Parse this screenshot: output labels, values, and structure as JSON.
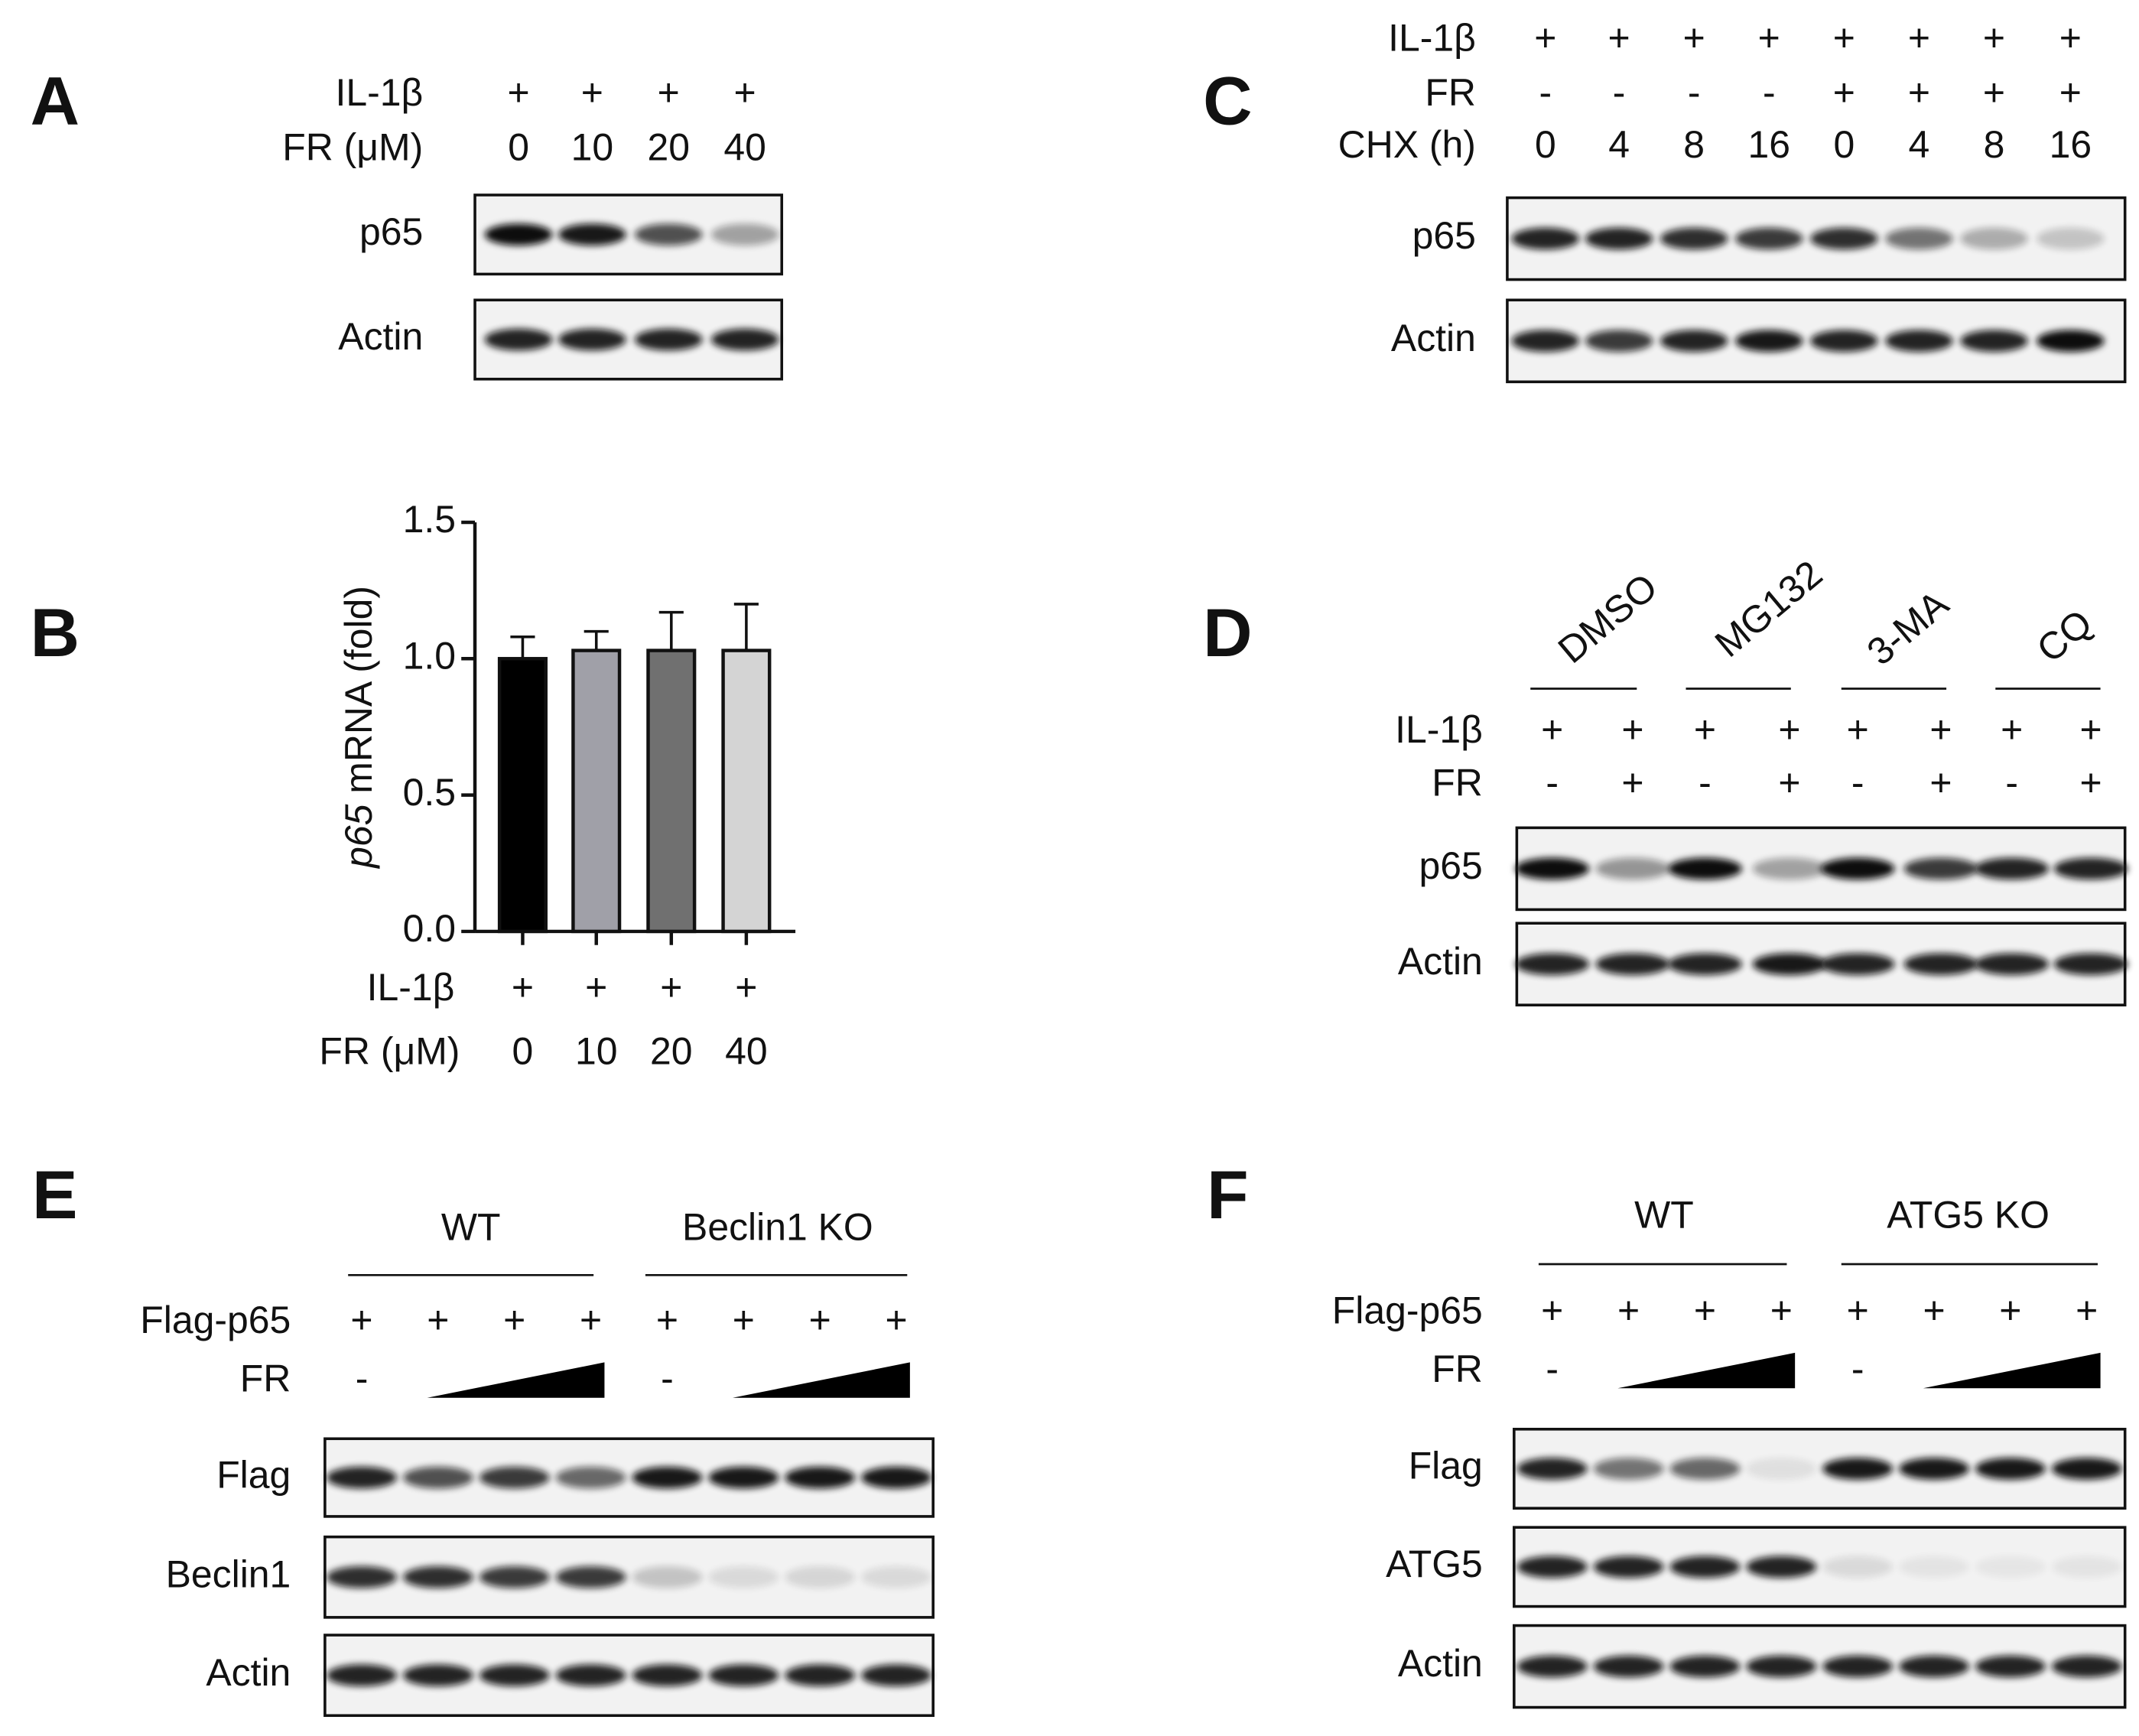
{
  "panels": {
    "A": {
      "label": "A",
      "conditions": [
        {
          "name": "IL-1β",
          "values": [
            "+",
            "+",
            "+",
            "+"
          ]
        },
        {
          "name": "FR (μM)",
          "values": [
            "0",
            "10",
            "20",
            "40"
          ]
        }
      ],
      "blots": [
        "p65",
        "Actin"
      ]
    },
    "C": {
      "label": "C",
      "conditions": [
        {
          "name": "IL-1β",
          "values": [
            "+",
            "+",
            "+",
            "+",
            "+",
            "+",
            "+",
            "+"
          ]
        },
        {
          "name": "FR",
          "values": [
            "-",
            "-",
            "-",
            "-",
            "+",
            "+",
            "+",
            "+"
          ]
        },
        {
          "name": "CHX (h)",
          "values": [
            "0",
            "4",
            "8",
            "16",
            "0",
            "4",
            "8",
            "16"
          ]
        }
      ],
      "blots": [
        "p65",
        "Actin"
      ]
    },
    "D": {
      "label": "D",
      "groups": [
        "DMSO",
        "MG132",
        "3-MA",
        "CQ"
      ],
      "conditions": [
        {
          "name": "IL-1β",
          "values": [
            "+",
            "+",
            "+",
            "+",
            "+",
            "+",
            "+",
            "+"
          ]
        },
        {
          "name": "FR",
          "values": [
            "-",
            "+",
            "-",
            "+",
            "-",
            "+",
            "-",
            "+"
          ]
        }
      ],
      "blots": [
        "p65",
        "Actin"
      ]
    },
    "E": {
      "label": "E",
      "groups": [
        "WT",
        "Beclin1 KO"
      ],
      "conditions": [
        {
          "name": "Flag-p65",
          "values": [
            "+",
            "+",
            "+",
            "+",
            "+",
            "+",
            "+",
            "+"
          ]
        },
        {
          "name": "FR",
          "values": [
            "-",
            null,
            null,
            null,
            "-",
            null,
            null,
            null
          ],
          "wedge": true
        }
      ],
      "blots": [
        "Flag",
        "Beclin1",
        "Actin"
      ]
    },
    "F": {
      "label": "F",
      "groups": [
        "WT",
        "ATG5 KO"
      ],
      "conditions": [
        {
          "name": "Flag-p65",
          "values": [
            "+",
            "+",
            "+",
            "+",
            "+",
            "+",
            "+",
            "+"
          ]
        },
        {
          "name": "FR",
          "values": [
            "-",
            null,
            null,
            null,
            "-",
            null,
            null,
            null
          ],
          "wedge": true
        }
      ],
      "blots": [
        "Flag",
        "ATG5",
        "Actin"
      ]
    }
  },
  "chart_data": {
    "type": "bar",
    "panel_label": "B",
    "ylabel_italic": "p65",
    "ylabel": "mRNA (fold)",
    "conditions": [
      {
        "name": "IL-1β",
        "values": [
          "+",
          "+",
          "+",
          "+"
        ]
      }
    ],
    "categories_label": "FR (μM)",
    "categories": [
      "0",
      "10",
      "20",
      "40"
    ],
    "values": [
      1.0,
      1.03,
      1.03,
      1.03
    ],
    "errors": [
      0.08,
      0.07,
      0.14,
      0.17
    ],
    "colors": [
      "#000000",
      "#a0a0a8",
      "#707070",
      "#d4d4d4"
    ],
    "ylim": [
      0,
      1.5
    ],
    "yticks": [
      {
        "value": 0,
        "label": "0.0"
      },
      {
        "value": 0.5,
        "label": "0.5"
      },
      {
        "value": 1,
        "label": "1.0"
      },
      {
        "value": 1.5,
        "label": "1.5"
      }
    ]
  }
}
